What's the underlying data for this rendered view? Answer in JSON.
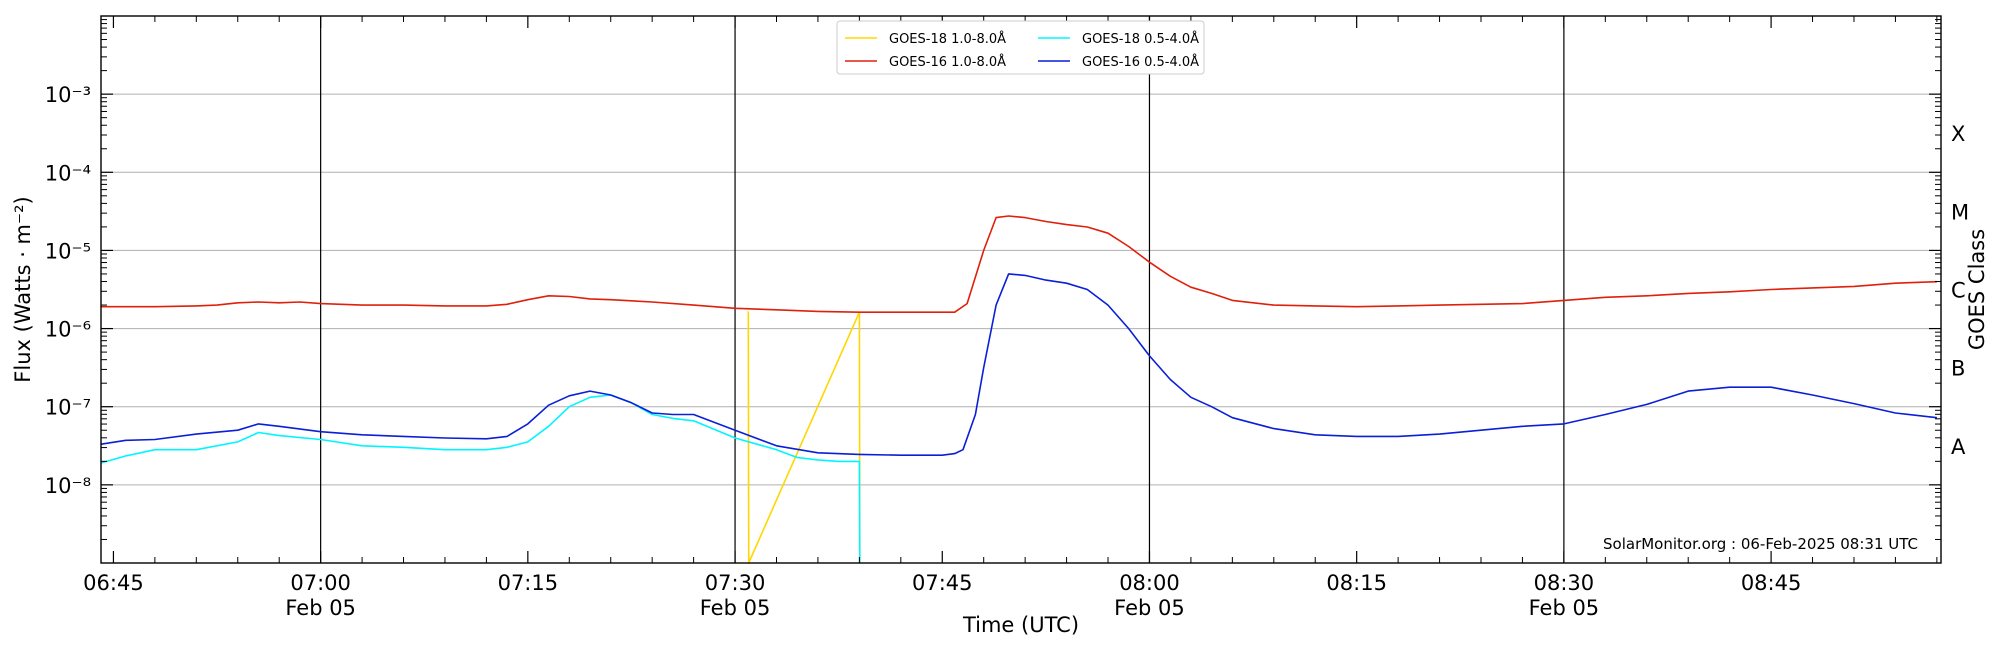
{
  "chart_data": {
    "type": "line",
    "xlabel": "Time (UTC)",
    "ylabel": "Flux (Watts · m⁻²)",
    "ylabel_right": "GOES Class",
    "yscale": "log",
    "x_unit": "minutes",
    "xlim": [
      -0.3,
      44.1
    ],
    "ylim_exp": [
      -9,
      -2
    ],
    "grid": "horizontal at decades",
    "legend_placement": "top-center",
    "credit": "SolarMonitor.org : 06-Feb-2025 08:31 UTC",
    "x_ticks": [
      {
        "x": 0,
        "label": "06:45",
        "sub": ""
      },
      {
        "x": 5,
        "label": "07:00",
        "sub": "Feb 05"
      },
      {
        "x": 10,
        "label": "07:15",
        "sub": ""
      },
      {
        "x": 15,
        "label": "07:30",
        "sub": "Feb 05"
      },
      {
        "x": 20,
        "label": "07:45",
        "sub": ""
      },
      {
        "x": 25,
        "label": "08:00",
        "sub": "Feb 05"
      },
      {
        "x": 30,
        "label": "08:15",
        "sub": ""
      },
      {
        "x": 35,
        "label": "08:30",
        "sub": "Feb 05"
      },
      {
        "x": 40,
        "label": "08:45",
        "sub": ""
      }
    ],
    "vlines_x": [
      5,
      15,
      25,
      35
    ],
    "y_ticks": [
      {
        "exp": -8,
        "label": "10⁻⁸"
      },
      {
        "exp": -7,
        "label": "10⁻⁷"
      },
      {
        "exp": -6,
        "label": "10⁻⁶"
      },
      {
        "exp": -5,
        "label": "10⁻⁵"
      },
      {
        "exp": -4,
        "label": "10⁻⁴"
      },
      {
        "exp": -3,
        "label": "10⁻³"
      }
    ],
    "goes_classes": [
      {
        "label": "A",
        "exp": -7.5
      },
      {
        "label": "B",
        "exp": -6.5
      },
      {
        "label": "C",
        "exp": -5.5
      },
      {
        "label": "M",
        "exp": -4.5
      },
      {
        "label": "X",
        "exp": -3.5
      }
    ],
    "series": [
      {
        "name": "GOES-18 1.0-8.0Å",
        "color": "#ffd700",
        "points": [
          [
            15.32,
            -5.78
          ],
          [
            15.33,
            -9.0
          ],
          [
            18.0,
            -5.79
          ],
          [
            18.01,
            -9.0
          ]
        ]
      },
      {
        "name": "GOES-16 1.0-8.0Å",
        "color": "#e0200a",
        "points": [
          [
            -0.3,
            -5.72
          ],
          [
            1,
            -5.72
          ],
          [
            2,
            -5.71
          ],
          [
            2.5,
            -5.7
          ],
          [
            3,
            -5.67
          ],
          [
            3.5,
            -5.66
          ],
          [
            4,
            -5.67
          ],
          [
            4.5,
            -5.66
          ],
          [
            5,
            -5.68
          ],
          [
            6,
            -5.7
          ],
          [
            7,
            -5.7
          ],
          [
            8,
            -5.71
          ],
          [
            9,
            -5.71
          ],
          [
            9.5,
            -5.69
          ],
          [
            10,
            -5.63
          ],
          [
            10.5,
            -5.58
          ],
          [
            11,
            -5.59
          ],
          [
            11.5,
            -5.62
          ],
          [
            12,
            -5.63
          ],
          [
            13,
            -5.66
          ],
          [
            14,
            -5.7
          ],
          [
            15,
            -5.74
          ],
          [
            16,
            -5.76
          ],
          [
            17,
            -5.78
          ],
          [
            18,
            -5.79
          ],
          [
            19,
            -5.79
          ],
          [
            20,
            -5.79
          ],
          [
            20.3,
            -5.79
          ],
          [
            20.6,
            -5.68
          ],
          [
            21.0,
            -5.0
          ],
          [
            21.3,
            -4.58
          ],
          [
            21.6,
            -4.56
          ],
          [
            22.0,
            -4.58
          ],
          [
            22.5,
            -4.63
          ],
          [
            23.0,
            -4.67
          ],
          [
            23.5,
            -4.7
          ],
          [
            24.0,
            -4.78
          ],
          [
            24.5,
            -4.95
          ],
          [
            25.0,
            -5.15
          ],
          [
            25.5,
            -5.33
          ],
          [
            26.0,
            -5.47
          ],
          [
            26.5,
            -5.55
          ],
          [
            27,
            -5.64
          ],
          [
            28,
            -5.7
          ],
          [
            29,
            -5.71
          ],
          [
            30,
            -5.72
          ],
          [
            31,
            -5.71
          ],
          [
            32,
            -5.7
          ],
          [
            33,
            -5.69
          ],
          [
            34,
            -5.68
          ],
          [
            35,
            -5.64
          ],
          [
            36,
            -5.6
          ],
          [
            37,
            -5.58
          ],
          [
            38,
            -5.55
          ],
          [
            39,
            -5.53
          ],
          [
            40,
            -5.5
          ],
          [
            41,
            -5.48
          ],
          [
            42,
            -5.46
          ],
          [
            43,
            -5.42
          ],
          [
            44,
            -5.4
          ],
          [
            44.0,
            -5.4
          ]
        ]
      },
      {
        "name": "GOES-18 0.5-4.0Å",
        "color": "#00f5ff",
        "points": [
          [
            -0.3,
            -7.72
          ],
          [
            0.3,
            -7.63
          ],
          [
            1,
            -7.55
          ],
          [
            2,
            -7.55
          ],
          [
            3,
            -7.45
          ],
          [
            3.5,
            -7.33
          ],
          [
            4,
            -7.37
          ],
          [
            5,
            -7.42
          ],
          [
            6,
            -7.5
          ],
          [
            7,
            -7.52
          ],
          [
            8,
            -7.55
          ],
          [
            9,
            -7.55
          ],
          [
            9.5,
            -7.52
          ],
          [
            10,
            -7.45
          ],
          [
            10.5,
            -7.25
          ],
          [
            11,
            -7.0
          ],
          [
            11.5,
            -6.88
          ],
          [
            12,
            -6.85
          ],
          [
            12.5,
            -6.95
          ],
          [
            13,
            -7.1
          ],
          [
            13.5,
            -7.15
          ],
          [
            14,
            -7.18
          ],
          [
            15,
            -7.4
          ],
          [
            16,
            -7.55
          ],
          [
            16.5,
            -7.65
          ],
          [
            17,
            -7.68
          ],
          [
            17.5,
            -7.7
          ],
          [
            18.0,
            -7.7
          ],
          [
            18.01,
            -9.0
          ]
        ]
      },
      {
        "name": "GOES-16 0.5-4.0Å",
        "color": "#0a1fd8",
        "points": [
          [
            -0.3,
            -7.48
          ],
          [
            0.3,
            -7.43
          ],
          [
            1,
            -7.42
          ],
          [
            2,
            -7.35
          ],
          [
            3,
            -7.3
          ],
          [
            3.5,
            -7.22
          ],
          [
            4,
            -7.25
          ],
          [
            5,
            -7.32
          ],
          [
            6,
            -7.36
          ],
          [
            7,
            -7.38
          ],
          [
            8,
            -7.4
          ],
          [
            9,
            -7.41
          ],
          [
            9.5,
            -7.38
          ],
          [
            10,
            -7.22
          ],
          [
            10.5,
            -6.98
          ],
          [
            11,
            -6.86
          ],
          [
            11.5,
            -6.8
          ],
          [
            12,
            -6.85
          ],
          [
            12.5,
            -6.95
          ],
          [
            13,
            -7.08
          ],
          [
            13.5,
            -7.1
          ],
          [
            14,
            -7.1
          ],
          [
            15,
            -7.3
          ],
          [
            16,
            -7.5
          ],
          [
            17,
            -7.59
          ],
          [
            18,
            -7.61
          ],
          [
            19,
            -7.62
          ],
          [
            20,
            -7.62
          ],
          [
            20.3,
            -7.6
          ],
          [
            20.5,
            -7.55
          ],
          [
            20.8,
            -7.1
          ],
          [
            21.0,
            -6.5
          ],
          [
            21.3,
            -5.7
          ],
          [
            21.6,
            -5.3
          ],
          [
            22.0,
            -5.32
          ],
          [
            22.5,
            -5.38
          ],
          [
            23.0,
            -5.42
          ],
          [
            23.5,
            -5.5
          ],
          [
            24.0,
            -5.7
          ],
          [
            24.5,
            -6.0
          ],
          [
            25.0,
            -6.35
          ],
          [
            25.5,
            -6.65
          ],
          [
            26.0,
            -6.88
          ],
          [
            26.5,
            -7.0
          ],
          [
            27,
            -7.14
          ],
          [
            28,
            -7.28
          ],
          [
            29,
            -7.36
          ],
          [
            30,
            -7.38
          ],
          [
            31,
            -7.38
          ],
          [
            32,
            -7.35
          ],
          [
            33,
            -7.3
          ],
          [
            34,
            -7.25
          ],
          [
            35,
            -7.22
          ],
          [
            36,
            -7.1
          ],
          [
            37,
            -6.97
          ],
          [
            38,
            -6.8
          ],
          [
            39,
            -6.75
          ],
          [
            40,
            -6.75
          ],
          [
            41,
            -6.85
          ],
          [
            42,
            -6.96
          ],
          [
            43,
            -7.08
          ],
          [
            44,
            -7.14
          ],
          [
            44.0,
            -7.14
          ]
        ]
      }
    ]
  }
}
